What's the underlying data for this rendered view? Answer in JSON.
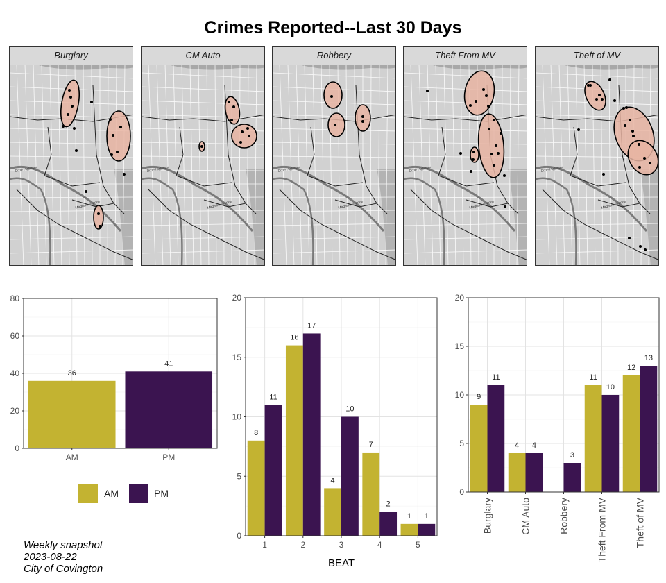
{
  "title": "Crimes Reported--Last 30 Days",
  "colors": {
    "am": "#c3b331",
    "pm": "#3b1450",
    "hotspot": "#e8b4a2"
  },
  "maps": {
    "panels": [
      "Burglary",
      "CM Auto",
      "Robbery",
      "Theft From MV",
      "Theft of MV"
    ],
    "street_labels": [
      "Madison Avenue",
      "Dixie Highway"
    ]
  },
  "legend": {
    "am": "AM",
    "pm": "PM"
  },
  "caption": {
    "line1": "Weekly snapshot",
    "line2": "2023-08-22",
    "line3": "City of Covington"
  },
  "chart_data": [
    {
      "type": "bar",
      "categories": [
        "AM",
        "PM"
      ],
      "values": [
        36,
        41
      ],
      "ylim": [
        0,
        80
      ],
      "yticks": [
        0,
        20,
        40,
        60,
        80
      ],
      "xlabel": "",
      "ylabel": "",
      "grid": true
    },
    {
      "type": "bar",
      "categories": [
        "1",
        "2",
        "3",
        "4",
        "5"
      ],
      "series": [
        {
          "name": "AM",
          "values": [
            8,
            16,
            4,
            7,
            1
          ]
        },
        {
          "name": "PM",
          "values": [
            11,
            17,
            10,
            2,
            1
          ]
        }
      ],
      "ylim": [
        0,
        20
      ],
      "yticks": [
        0,
        5,
        10,
        15,
        20
      ],
      "xlabel": "BEAT",
      "ylabel": "",
      "grid": true
    },
    {
      "type": "bar",
      "categories": [
        "Burglary",
        "CM Auto",
        "Robbery",
        "Theft From MV",
        "Theft of MV"
      ],
      "series": [
        {
          "name": "AM",
          "values": [
            9,
            4,
            0,
            11,
            12
          ]
        },
        {
          "name": "PM",
          "values": [
            11,
            4,
            3,
            10,
            13
          ]
        }
      ],
      "ylim": [
        0,
        20
      ],
      "yticks": [
        0,
        5,
        10,
        15,
        20
      ],
      "xlabel": "",
      "ylabel": "",
      "grid": true
    }
  ]
}
